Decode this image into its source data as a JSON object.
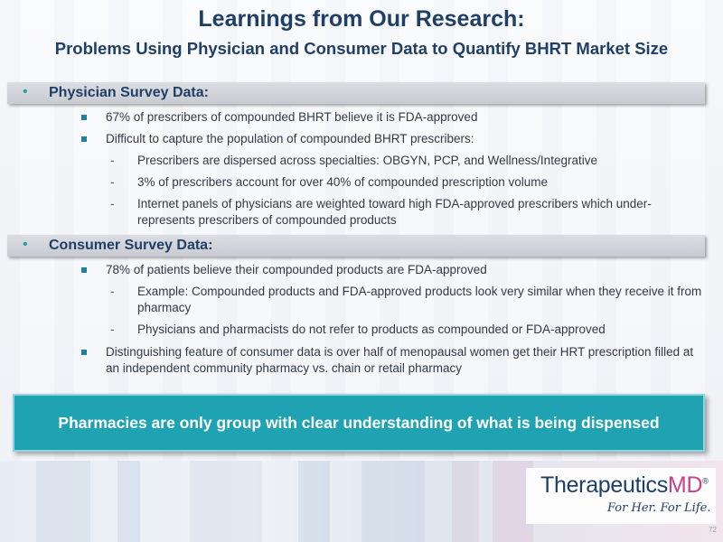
{
  "title": "Learnings from Our Research:",
  "subtitle": "Problems Using Physician and Consumer Data to Quantify BHRT Market Size",
  "sections": [
    {
      "bullet": "•",
      "heading": "Physician Survey Data:",
      "items": [
        "67% of prescribers of compounded BHRT believe it is FDA-approved",
        "Difficult to capture the population of compounded BHRT prescribers:"
      ],
      "subitems": [
        "Prescribers are dispersed across specialties: OBGYN, PCP, and Wellness/Integrative",
        "3% of prescribers account for over 40% of compounded prescription volume",
        "Internet panels of physicians are weighted toward high FDA-approved prescribers which under-represents prescribers of compounded products"
      ]
    },
    {
      "bullet": "•",
      "heading": "Consumer Survey Data:",
      "items": [
        "78% of patients believe their compounded products are FDA-approved",
        "Distinguishing feature of consumer data is over half of menopausal women get their HRT prescription filled at an independent community pharmacy vs. chain or retail pharmacy"
      ],
      "subitems": [
        "Example: Compounded products and FDA-approved products look very similar when they receive it from pharmacy",
        "Physicians and pharmacists do not refer to products as compounded or FDA-approved"
      ]
    }
  ],
  "dash": "-",
  "callout": "Pharmacies are only group with clear understanding of what is being dispensed",
  "logo": {
    "name": "Therapeutics",
    "suffix": "MD",
    "registered": "®",
    "tagline": "For Her. For Life."
  },
  "page_number": "72",
  "colors": {
    "title": "#1f3f66",
    "accent": "#1fa3b2",
    "brand_pink": "#c94182"
  }
}
